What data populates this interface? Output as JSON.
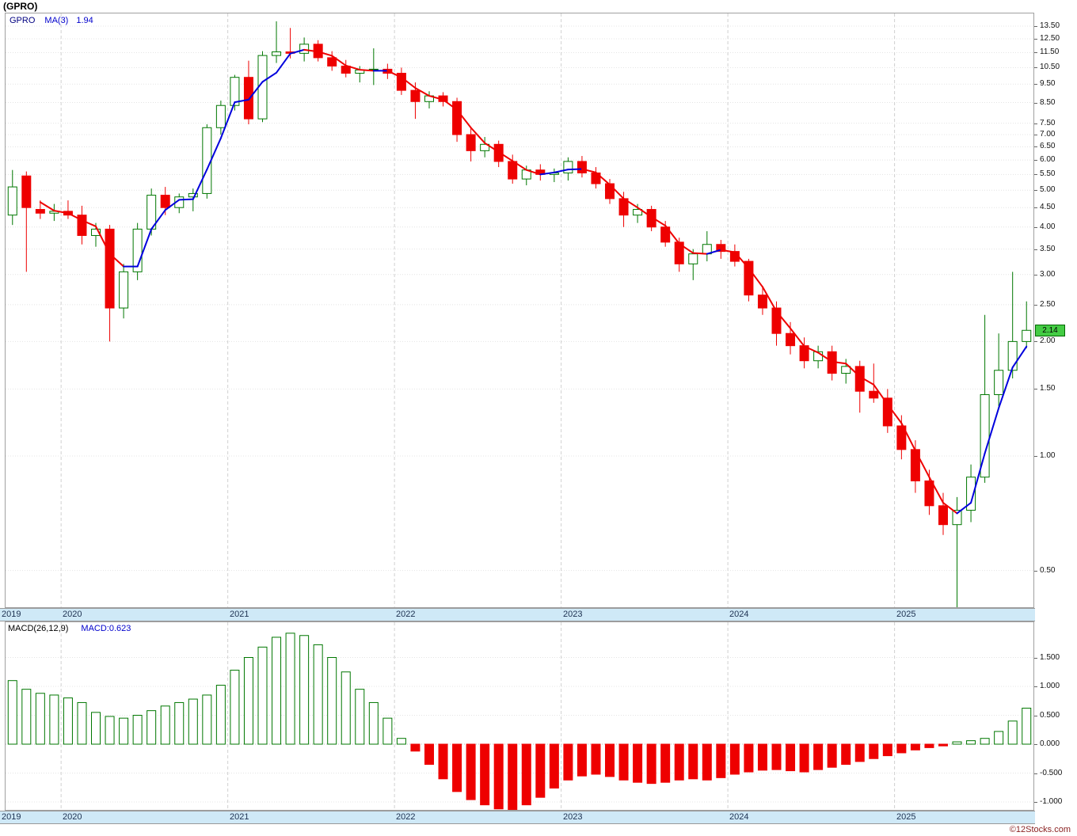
{
  "title": "(GPRO)",
  "price_pane": {
    "legend": {
      "symbol": "GPRO",
      "ma_label": "MA(3)",
      "ma_value": "1.94"
    },
    "current_price_badge": "2.14"
  },
  "macd_pane": {
    "legend_label": "MACD(26,12,9)",
    "legend_value": "MACD:0.623"
  },
  "footer": {
    "credit": "©12Stocks.com"
  },
  "colors": {
    "up_candle": "#007700",
    "down_candle": "#ee0000",
    "ma_up": "#0000dd",
    "ma_down": "#ee0000",
    "badge_bg": "#44cc44",
    "strip_bg": "#cfe9f7",
    "accent_blue": "#0000cc"
  },
  "chart_data": [
    {
      "type": "candlestick",
      "title": "GPRO monthly price with MA(3) overlay",
      "y_scale": "log",
      "ylim": [
        0.4,
        14.6
      ],
      "ma_period": 3,
      "ma_last": 1.94,
      "last_close": 2.14,
      "y_ticks": [
        "13.50",
        "12.50",
        "11.50",
        "10.50",
        "9.50",
        "8.50",
        "7.50",
        "7.00",
        "6.50",
        "6.00",
        "5.50",
        "5.00",
        "4.50",
        "4.00",
        "3.50",
        "3.00",
        "2.50",
        "2.00",
        "1.50",
        "1.00",
        "0.50"
      ],
      "x_years": [
        {
          "label": "2019",
          "index": 0
        },
        {
          "label": "2020",
          "index": 4
        },
        {
          "label": "2021",
          "index": 16
        },
        {
          "label": "2022",
          "index": 28
        },
        {
          "label": "2023",
          "index": 40
        },
        {
          "label": "2024",
          "index": 52
        },
        {
          "label": "2025",
          "index": 64
        }
      ],
      "ohlc": [
        [
          4.3,
          5.65,
          4.05,
          5.1
        ],
        [
          5.45,
          5.6,
          3.05,
          4.5
        ],
        [
          4.45,
          4.7,
          4.2,
          4.35
        ],
        [
          4.35,
          4.6,
          4.15,
          4.4
        ],
        [
          4.4,
          4.7,
          4.2,
          4.3
        ],
        [
          4.3,
          4.55,
          3.6,
          3.8
        ],
        [
          3.8,
          4.1,
          3.55,
          3.95
        ],
        [
          3.95,
          4.05,
          2.0,
          2.45
        ],
        [
          2.45,
          3.2,
          2.3,
          3.05
        ],
        [
          3.05,
          4.1,
          2.9,
          3.95
        ],
        [
          3.95,
          5.05,
          3.8,
          4.85
        ],
        [
          4.85,
          5.1,
          4.3,
          4.5
        ],
        [
          4.5,
          4.9,
          4.35,
          4.8
        ],
        [
          4.8,
          5.05,
          4.4,
          4.9
        ],
        [
          4.9,
          7.45,
          4.75,
          7.3
        ],
        [
          7.3,
          8.6,
          7.0,
          8.35
        ],
        [
          8.35,
          10.05,
          8.1,
          9.9
        ],
        [
          9.9,
          10.95,
          7.45,
          7.7
        ],
        [
          7.7,
          11.6,
          7.55,
          11.3
        ],
        [
          11.3,
          13.9,
          10.8,
          11.55
        ],
        [
          11.55,
          13.35,
          11.1,
          11.45
        ],
        [
          11.45,
          12.6,
          10.9,
          12.1
        ],
        [
          12.1,
          12.4,
          10.9,
          11.15
        ],
        [
          11.15,
          11.6,
          10.3,
          10.6
        ],
        [
          10.6,
          11.0,
          9.9,
          10.15
        ],
        [
          10.15,
          10.6,
          9.6,
          10.35
        ],
        [
          10.35,
          11.8,
          9.45,
          10.4
        ],
        [
          10.4,
          10.75,
          9.8,
          10.15
        ],
        [
          10.15,
          10.5,
          8.9,
          9.15
        ],
        [
          9.15,
          9.6,
          7.7,
          8.55
        ],
        [
          8.55,
          9.1,
          8.2,
          8.85
        ],
        [
          8.85,
          9.05,
          8.3,
          8.55
        ],
        [
          8.55,
          8.75,
          6.7,
          7.0
        ],
        [
          7.0,
          7.3,
          5.95,
          6.35
        ],
        [
          6.35,
          6.9,
          6.1,
          6.6
        ],
        [
          6.6,
          6.75,
          5.75,
          5.95
        ],
        [
          5.95,
          6.2,
          5.2,
          5.35
        ],
        [
          5.35,
          5.8,
          5.15,
          5.65
        ],
        [
          5.65,
          5.85,
          5.3,
          5.5
        ],
        [
          5.5,
          5.7,
          5.25,
          5.55
        ],
        [
          5.55,
          6.1,
          5.3,
          5.95
        ],
        [
          5.95,
          6.15,
          5.4,
          5.55
        ],
        [
          5.55,
          5.75,
          5.05,
          5.2
        ],
        [
          5.2,
          5.35,
          4.6,
          4.75
        ],
        [
          4.75,
          4.95,
          4.0,
          4.3
        ],
        [
          4.3,
          4.6,
          4.1,
          4.45
        ],
        [
          4.45,
          4.55,
          3.9,
          4.0
        ],
        [
          4.0,
          4.15,
          3.55,
          3.65
        ],
        [
          3.65,
          3.75,
          3.05,
          3.2
        ],
        [
          3.2,
          3.5,
          2.9,
          3.4
        ],
        [
          3.4,
          3.9,
          3.25,
          3.6
        ],
        [
          3.6,
          3.7,
          3.3,
          3.45
        ],
        [
          3.45,
          3.6,
          3.15,
          3.25
        ],
        [
          3.25,
          3.3,
          2.55,
          2.65
        ],
        [
          2.65,
          2.8,
          2.35,
          2.45
        ],
        [
          2.45,
          2.55,
          1.95,
          2.1
        ],
        [
          2.1,
          2.25,
          1.85,
          1.95
        ],
        [
          1.95,
          2.05,
          1.7,
          1.78
        ],
        [
          1.78,
          1.95,
          1.7,
          1.88
        ],
        [
          1.88,
          1.95,
          1.58,
          1.65
        ],
        [
          1.65,
          1.8,
          1.55,
          1.72
        ],
        [
          1.72,
          1.78,
          1.3,
          1.48
        ],
        [
          1.48,
          1.75,
          1.38,
          1.42
        ],
        [
          1.42,
          1.5,
          1.15,
          1.2
        ],
        [
          1.2,
          1.28,
          0.98,
          1.04
        ],
        [
          1.04,
          1.1,
          0.8,
          0.86
        ],
        [
          0.86,
          0.92,
          0.7,
          0.74
        ],
        [
          0.74,
          0.8,
          0.62,
          0.66
        ],
        [
          0.66,
          0.78,
          0.4,
          0.72
        ],
        [
          0.72,
          0.95,
          0.67,
          0.88
        ],
        [
          0.88,
          2.35,
          0.85,
          1.45
        ],
        [
          1.45,
          2.1,
          1.35,
          1.68
        ],
        [
          1.68,
          3.05,
          1.6,
          2.0
        ],
        [
          2.0,
          2.55,
          1.92,
          2.14
        ]
      ]
    },
    {
      "type": "bar",
      "title": "MACD(26,12,9) histogram",
      "ylim": [
        -1.2,
        2.0
      ],
      "last_value": 0.623,
      "y_ticks": [
        "1.500",
        "1.000",
        "0.500",
        "0.000",
        "-0.500",
        "-1.000"
      ],
      "values": [
        1.1,
        0.95,
        0.88,
        0.85,
        0.8,
        0.72,
        0.55,
        0.48,
        0.45,
        0.5,
        0.58,
        0.66,
        0.72,
        0.78,
        0.85,
        1.02,
        1.28,
        1.5,
        1.68,
        1.85,
        1.92,
        1.88,
        1.72,
        1.5,
        1.25,
        0.95,
        0.72,
        0.45,
        0.1,
        -0.12,
        -0.35,
        -0.6,
        -0.82,
        -0.96,
        -1.05,
        -1.12,
        -1.15,
        -1.05,
        -0.92,
        -0.76,
        -0.62,
        -0.55,
        -0.52,
        -0.56,
        -0.62,
        -0.66,
        -0.68,
        -0.66,
        -0.62,
        -0.6,
        -0.62,
        -0.58,
        -0.52,
        -0.48,
        -0.45,
        -0.44,
        -0.46,
        -0.48,
        -0.44,
        -0.4,
        -0.35,
        -0.3,
        -0.25,
        -0.2,
        -0.15,
        -0.1,
        -0.06,
        -0.03,
        0.04,
        0.06,
        0.1,
        0.22,
        0.4,
        0.623
      ]
    }
  ]
}
